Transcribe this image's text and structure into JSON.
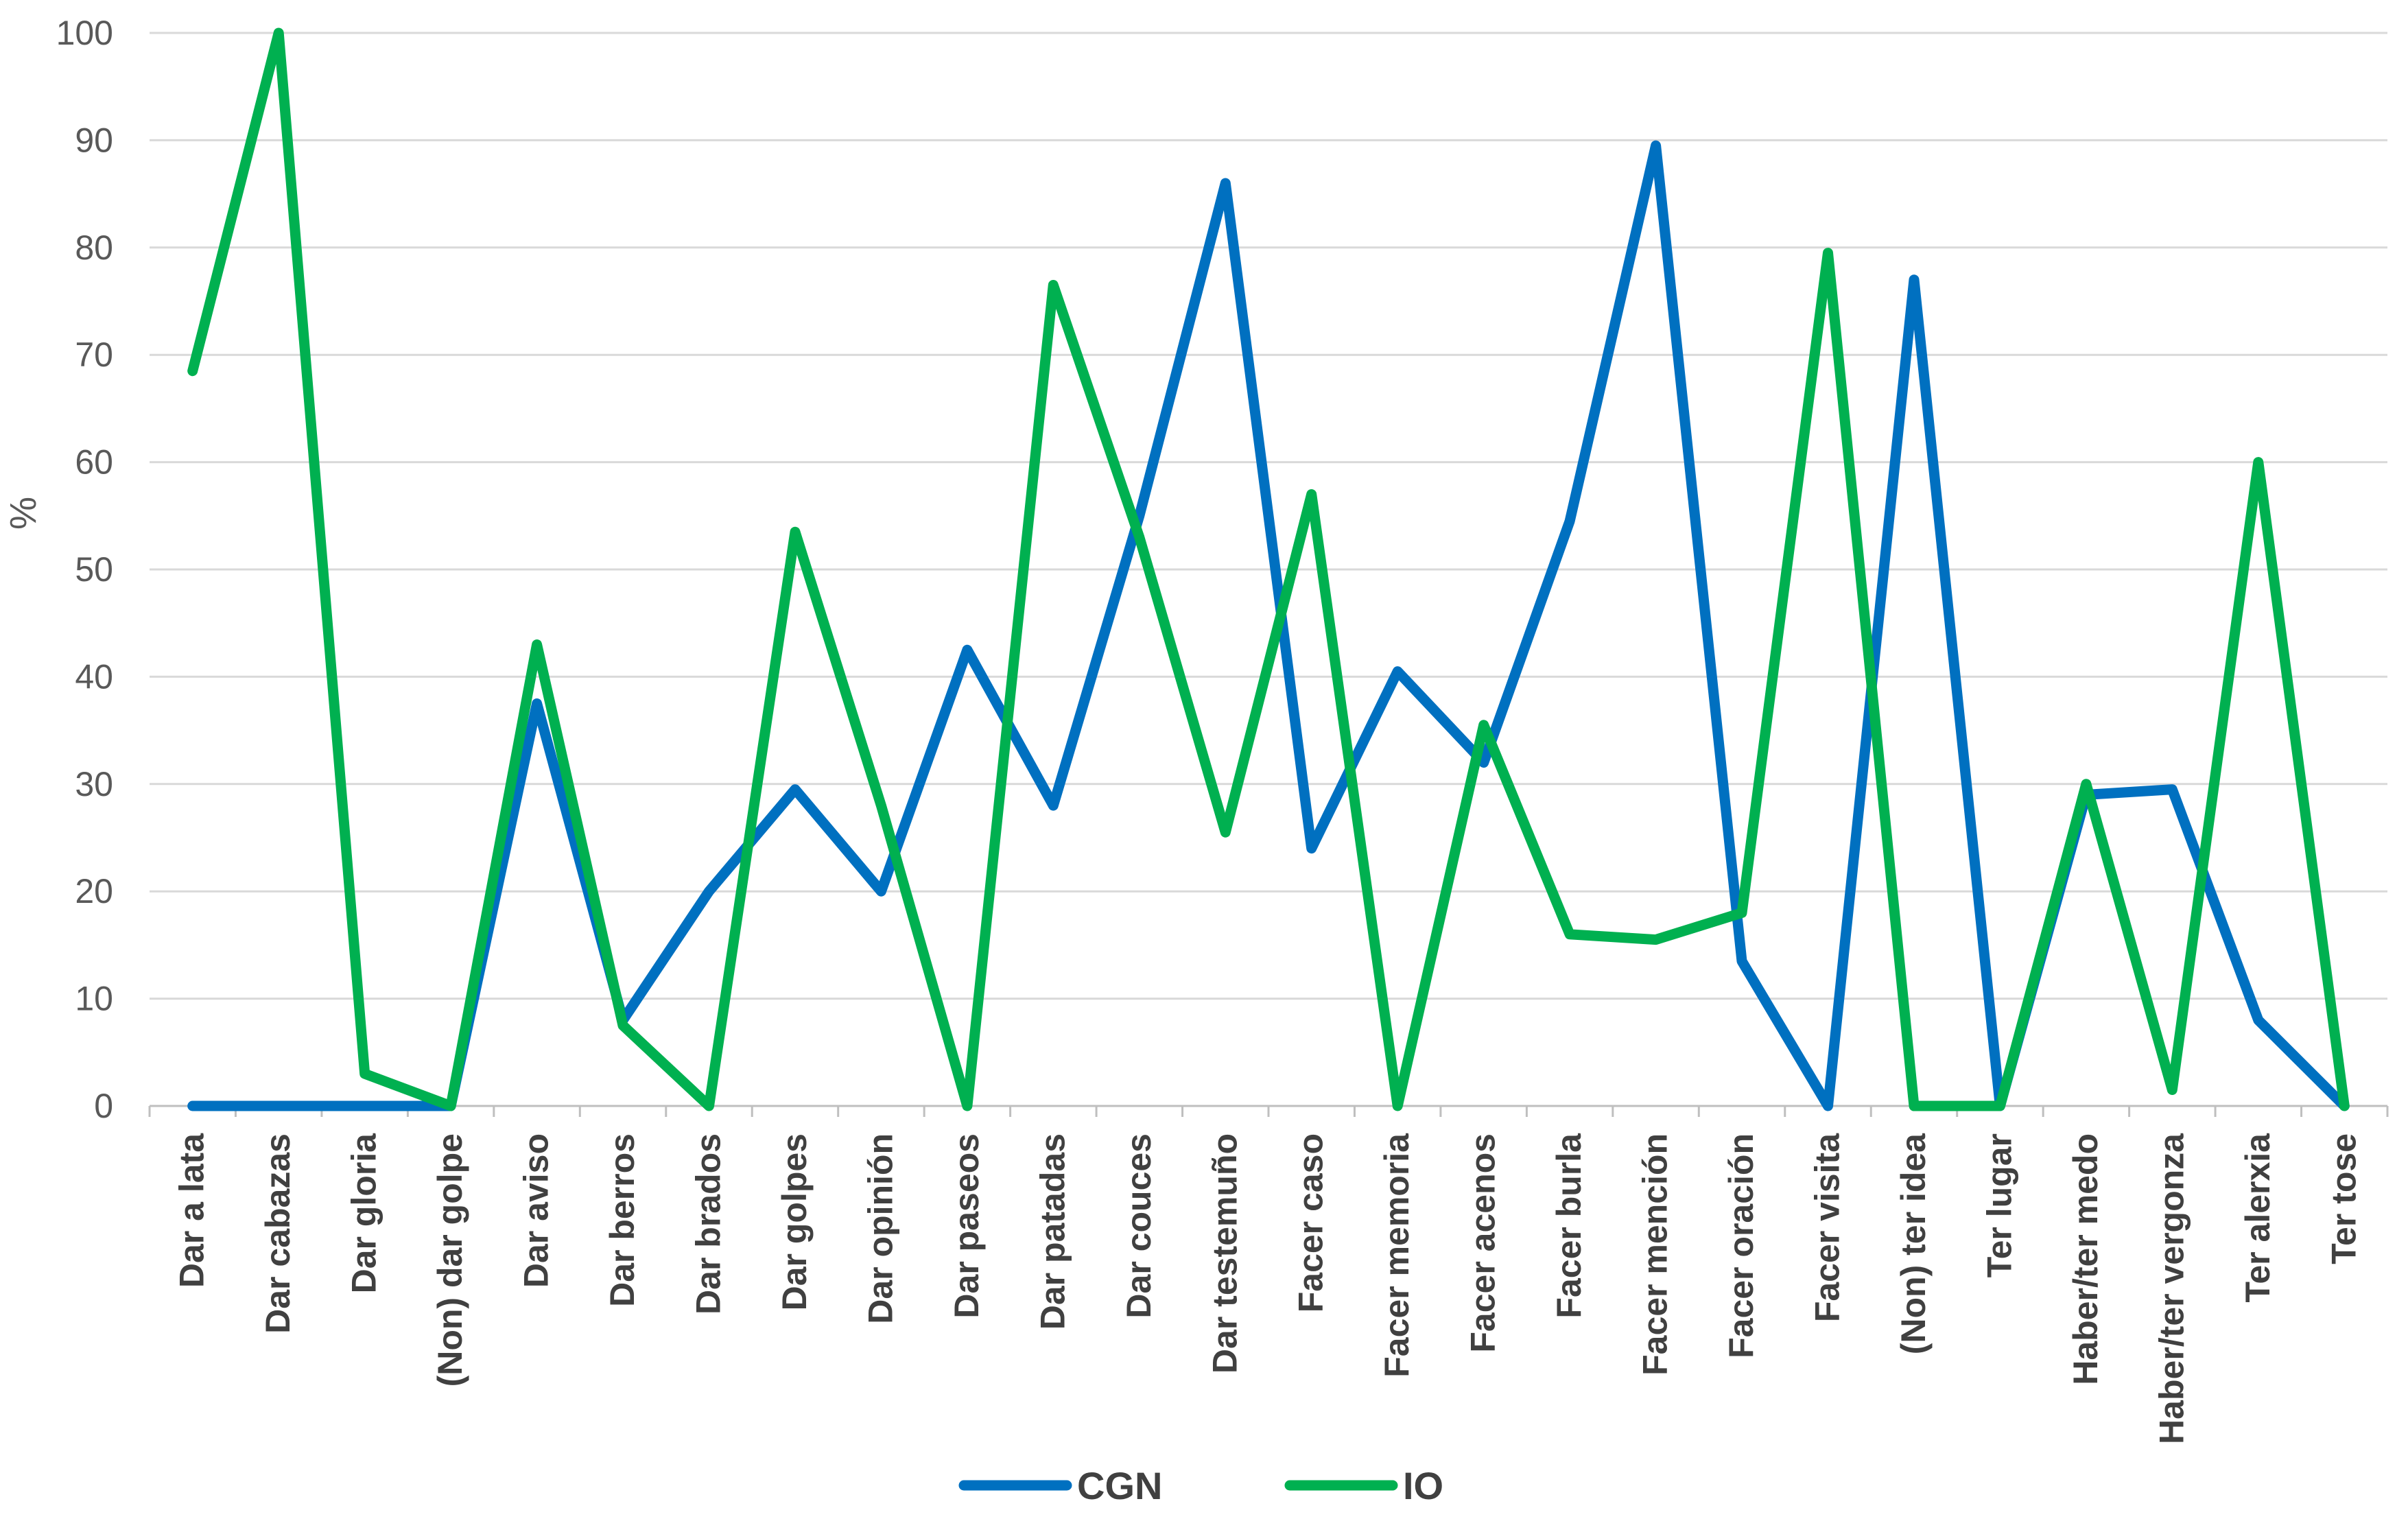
{
  "chart_data": {
    "type": "line",
    "title": "",
    "xlabel": "",
    "ylabel": "%",
    "ylim": [
      0,
      100
    ],
    "yticks": [
      0,
      10,
      20,
      30,
      40,
      50,
      60,
      70,
      80,
      90,
      100
    ],
    "grid": true,
    "legend": "bottom",
    "categories": [
      "Dar a lata",
      "Dar cabazas",
      "Dar gloria",
      "(Non) dar golpe",
      "Dar aviso",
      "Dar berros",
      "Dar brados",
      "Dar golpes",
      "Dar opinión",
      "Dar paseos",
      "Dar patadas",
      "Dar couces",
      "Dar testemuño",
      "Facer caso",
      "Facer memoria",
      "Facer acenos",
      "Facer burla",
      "Facer mención",
      "Facer oración",
      "Facer visita",
      "(Non) ter idea",
      "Ter lugar",
      "Haber/ter medo",
      "Haber/ter vergonza",
      "Ter alerxia",
      "Ter tose"
    ],
    "series": [
      {
        "name": "CGN",
        "color": "#0070C0",
        "values": [
          0,
          0,
          0,
          0,
          37.5,
          8,
          20,
          29.5,
          20,
          42.5,
          28,
          55,
          86,
          24,
          40.5,
          32,
          54.5,
          89.5,
          13.5,
          0,
          77,
          0,
          29,
          29.5,
          8,
          0
        ]
      },
      {
        "name": "IO",
        "color": "#00B050",
        "values": [
          68.5,
          100,
          3,
          0,
          43,
          7.5,
          0,
          53.5,
          28,
          0,
          76.5,
          53,
          25.5,
          57,
          0,
          35.5,
          16,
          15.5,
          18,
          79.5,
          0,
          0,
          30,
          1.5,
          60,
          0
        ]
      }
    ]
  }
}
